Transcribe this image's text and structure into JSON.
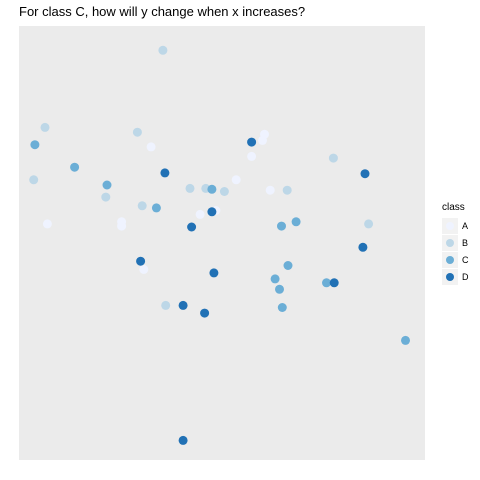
{
  "chart_data": {
    "type": "scatter",
    "title": "For class C, how will y change when x increases?",
    "xlabel": "",
    "ylabel": "",
    "xlim": [
      0,
      100
    ],
    "ylim": [
      0,
      100
    ],
    "grid": false,
    "legend": {
      "title": "class",
      "position": "right",
      "entries": [
        "A",
        "B",
        "C",
        "D"
      ]
    },
    "colors": {
      "A": "#eff3ff",
      "B": "#bdd7e7",
      "C": "#6baed6",
      "D": "#2171b5",
      "panel": "#ebebeb"
    },
    "series": [
      {
        "name": "A",
        "points": [
          [
            60.5,
            75.1
          ],
          [
            60.0,
            73.7
          ],
          [
            57.3,
            70.0
          ],
          [
            32.5,
            72.2
          ],
          [
            61.9,
            62.2
          ],
          [
            6.9,
            54.4
          ],
          [
            25.2,
            54.9
          ],
          [
            25.2,
            53.9
          ],
          [
            44.6,
            56.6
          ],
          [
            53.5,
            64.6
          ],
          [
            30.7,
            43.9
          ],
          [
            48.5,
            57.5
          ]
        ]
      },
      {
        "name": "B",
        "points": [
          [
            35.4,
            94.5
          ],
          [
            6.3,
            76.7
          ],
          [
            29.1,
            75.6
          ],
          [
            3.5,
            64.6
          ],
          [
            21.3,
            60.6
          ],
          [
            30.3,
            58.6
          ],
          [
            42.1,
            62.6
          ],
          [
            46.0,
            62.6
          ],
          [
            50.6,
            61.9
          ],
          [
            66.1,
            62.2
          ],
          [
            77.5,
            69.6
          ],
          [
            86.2,
            54.4
          ],
          [
            36.1,
            35.6
          ]
        ]
      },
      {
        "name": "C",
        "points": [
          [
            3.8,
            72.7
          ],
          [
            13.6,
            67.5
          ],
          [
            21.6,
            63.4
          ],
          [
            33.8,
            58.1
          ],
          [
            47.5,
            62.4
          ],
          [
            64.7,
            53.9
          ],
          [
            68.3,
            54.9
          ],
          [
            66.3,
            44.8
          ],
          [
            63.1,
            41.7
          ],
          [
            64.2,
            39.3
          ],
          [
            64.9,
            35.1
          ],
          [
            75.8,
            40.8
          ],
          [
            95.3,
            27.5
          ]
        ]
      },
      {
        "name": "D",
        "points": [
          [
            57.3,
            73.3
          ],
          [
            35.9,
            66.2
          ],
          [
            85.3,
            66.0
          ],
          [
            47.5,
            57.2
          ],
          [
            42.5,
            53.7
          ],
          [
            29.9,
            45.8
          ],
          [
            48.0,
            43.1
          ],
          [
            77.7,
            40.8
          ],
          [
            84.8,
            49.0
          ],
          [
            40.4,
            35.6
          ],
          [
            45.7,
            33.8
          ],
          [
            40.4,
            4.4
          ]
        ]
      }
    ]
  }
}
